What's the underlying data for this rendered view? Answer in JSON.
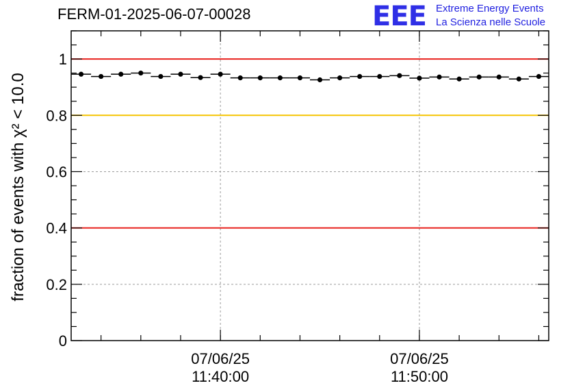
{
  "header": {
    "run_title": "FERM-01-2025-06-07-00028",
    "logo_text": "EEE",
    "logo_line1": "Extreme Energy Events",
    "logo_line2": "La Scienza nelle Scuole"
  },
  "chart_data": {
    "type": "scatter",
    "title": "FERM-01-2025-06-07-00028",
    "ylabel": "fraction of events with χ² < 10.0",
    "xlabel": "",
    "ylim": [
      0,
      1.1
    ],
    "y_ticks": [
      0,
      0.2,
      0.4,
      0.6,
      0.8,
      1
    ],
    "y_tick_labels": [
      "0",
      "0.2",
      "0.4",
      "0.6",
      "0.8",
      "1"
    ],
    "xlim": [
      "07/06/25 11:32:30",
      "07/06/25 11:56:30"
    ],
    "x_tick_labels": [
      {
        "date": "07/06/25",
        "time": "11:40:00"
      },
      {
        "date": "07/06/25",
        "time": "11:50:00"
      }
    ],
    "grid": true,
    "reference_lines": [
      {
        "y": 1.0,
        "color": "#e8201c"
      },
      {
        "y": 0.8,
        "color": "#f5c400"
      },
      {
        "y": 0.4,
        "color": "#e8201c"
      }
    ],
    "series": [
      {
        "color": "#000000",
        "x_time": [
          "11:33:00",
          "11:34:00",
          "11:35:00",
          "11:36:00",
          "11:37:00",
          "11:38:00",
          "11:39:00",
          "11:40:00",
          "11:41:00",
          "11:42:00",
          "11:43:00",
          "11:44:00",
          "11:45:00",
          "11:46:00",
          "11:47:00",
          "11:48:00",
          "11:49:00",
          "11:50:00",
          "11:51:00",
          "11:52:00",
          "11:53:00",
          "11:54:00",
          "11:55:00",
          "11:56:00"
        ],
        "values": [
          0.946,
          0.938,
          0.946,
          0.95,
          0.938,
          0.946,
          0.934,
          0.946,
          0.933,
          0.933,
          0.933,
          0.933,
          0.926,
          0.933,
          0.938,
          0.938,
          0.941,
          0.932,
          0.936,
          0.929,
          0.936,
          0.936,
          0.929,
          0.938
        ]
      }
    ]
  }
}
